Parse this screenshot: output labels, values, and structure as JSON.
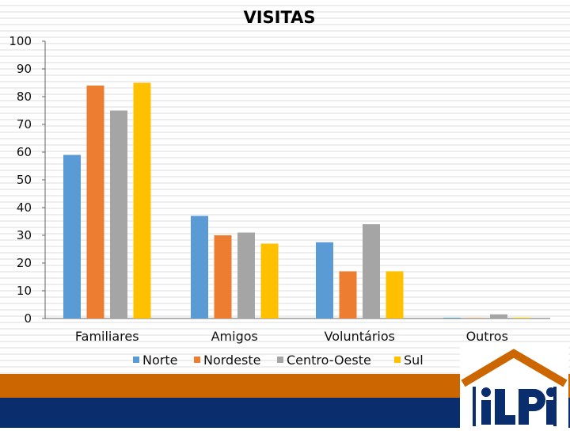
{
  "chart_data": {
    "type": "bar",
    "title": "VISITAS",
    "categories": [
      "Familiares",
      "Amigos",
      "Voluntários",
      "Outros"
    ],
    "series": [
      {
        "name": "Norte",
        "values": [
          59,
          37,
          27.5,
          0.3
        ],
        "color": "#5b9bd5"
      },
      {
        "name": "Nordeste",
        "values": [
          84,
          30,
          17,
          0.2
        ],
        "color": "#ed7d31"
      },
      {
        "name": "Centro-Oeste",
        "values": [
          75,
          31,
          34,
          1.5
        ],
        "color": "#a5a5a5"
      },
      {
        "name": "Sul",
        "values": [
          85,
          27,
          17,
          0.3
        ],
        "color": "#ffc000"
      }
    ],
    "yticks": [
      "0",
      "10",
      "20",
      "30",
      "40",
      "50",
      "60",
      "70",
      "80",
      "90",
      "100"
    ],
    "ylim": [
      0,
      100
    ],
    "xlabel": "",
    "ylabel": "",
    "legend_position": "bottom"
  },
  "footer": {
    "colors": {
      "orange": "#cc6600",
      "navy": "#0a2d6e"
    }
  },
  "logo": {
    "text": "iLPi"
  }
}
